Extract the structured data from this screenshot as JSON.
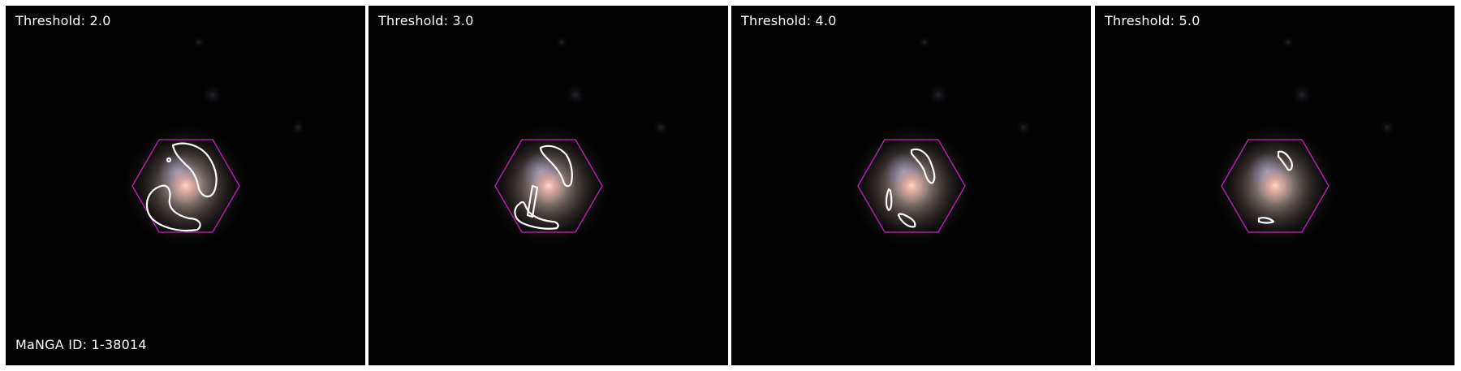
{
  "panels": [
    {
      "label": "Threshold: 2.0"
    },
    {
      "label": "Threshold: 3.0"
    },
    {
      "label": "Threshold: 4.0"
    },
    {
      "label": "Threshold: 5.0"
    }
  ],
  "manga_id_label": "MaNGA ID: 1-38014",
  "colors": {
    "background": "#000000",
    "hexagon": "#c020c0",
    "contour": "#ffffff",
    "separator": "#ffffff"
  }
}
